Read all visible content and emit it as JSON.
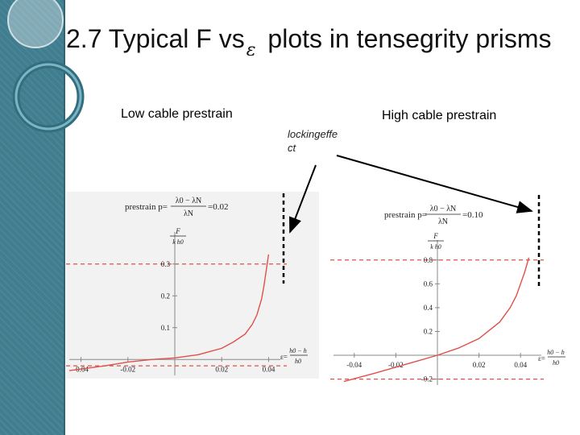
{
  "slide": {
    "title_prefix": "2.7  Typical ",
    "title_F": "F",
    "title_vs": " vs",
    "title_eps": "ε",
    "title_suffix": "  plots in tensegrity prisms"
  },
  "labels": {
    "low": "Low cable prestrain",
    "high": "High cable prestrain",
    "note_line1": "lockingeffe",
    "note_line2": "ct"
  },
  "colors": {
    "sidebar": "#3f7d8f",
    "curve": "#e0504a",
    "dashed_red": "#e0504a",
    "arrow": "#000000"
  },
  "chart_data": [
    {
      "type": "line",
      "annotation": "prestrain p=",
      "annotation_value": "=0.02",
      "frac_num": "λ0 − λN",
      "frac_den": "λN",
      "ylabel_num": "F",
      "ylabel_den": "k h0",
      "xlabel_num": "h0 − h",
      "xlabel_den": "h0",
      "xlabel_prefix": "ε=",
      "xlim": [
        -0.045,
        0.045
      ],
      "ylim": [
        -0.05,
        0.35
      ],
      "x_ticks": [
        "-0.04",
        "-0.02",
        "0.02",
        "0.04"
      ],
      "y_ticks": [
        "0.1",
        "0.2",
        "0.3"
      ],
      "hlines": [
        0.3,
        -0.02
      ],
      "series": [
        {
          "x": [
            -0.045,
            -0.03,
            -0.02,
            -0.01,
            0.0,
            0.01,
            0.02,
            0.025,
            0.03,
            0.033,
            0.035,
            0.037,
            0.038,
            0.039,
            0.04
          ],
          "y": [
            -0.035,
            -0.02,
            -0.008,
            0.0,
            0.005,
            0.015,
            0.035,
            0.055,
            0.08,
            0.11,
            0.14,
            0.19,
            0.23,
            0.28,
            0.33
          ]
        }
      ]
    },
    {
      "type": "line",
      "annotation": "prestrain p=",
      "annotation_value": "=0.10",
      "frac_num": "λ0 − λN",
      "frac_den": "λN",
      "ylabel_num": "F",
      "ylabel_den": "k h0",
      "xlabel_num": "h0 − h",
      "xlabel_den": "h0",
      "xlabel_prefix": "ε=",
      "xlim": [
        -0.05,
        0.05
      ],
      "ylim": [
        -0.25,
        0.9
      ],
      "x_ticks": [
        "-0.04",
        "-0.02",
        "0.02",
        "0.04"
      ],
      "y_ticks": [
        "-0.2",
        "0.2",
        "0.4",
        "0.6",
        "0.8"
      ],
      "hlines": [
        0.8,
        -0.2
      ],
      "series": [
        {
          "x": [
            -0.045,
            -0.03,
            -0.02,
            -0.01,
            0.0,
            0.01,
            0.02,
            0.03,
            0.035,
            0.038,
            0.04,
            0.042,
            0.044
          ],
          "y": [
            -0.22,
            -0.15,
            -0.1,
            -0.05,
            0.0,
            0.06,
            0.14,
            0.28,
            0.4,
            0.5,
            0.6,
            0.7,
            0.82
          ]
        }
      ]
    }
  ]
}
